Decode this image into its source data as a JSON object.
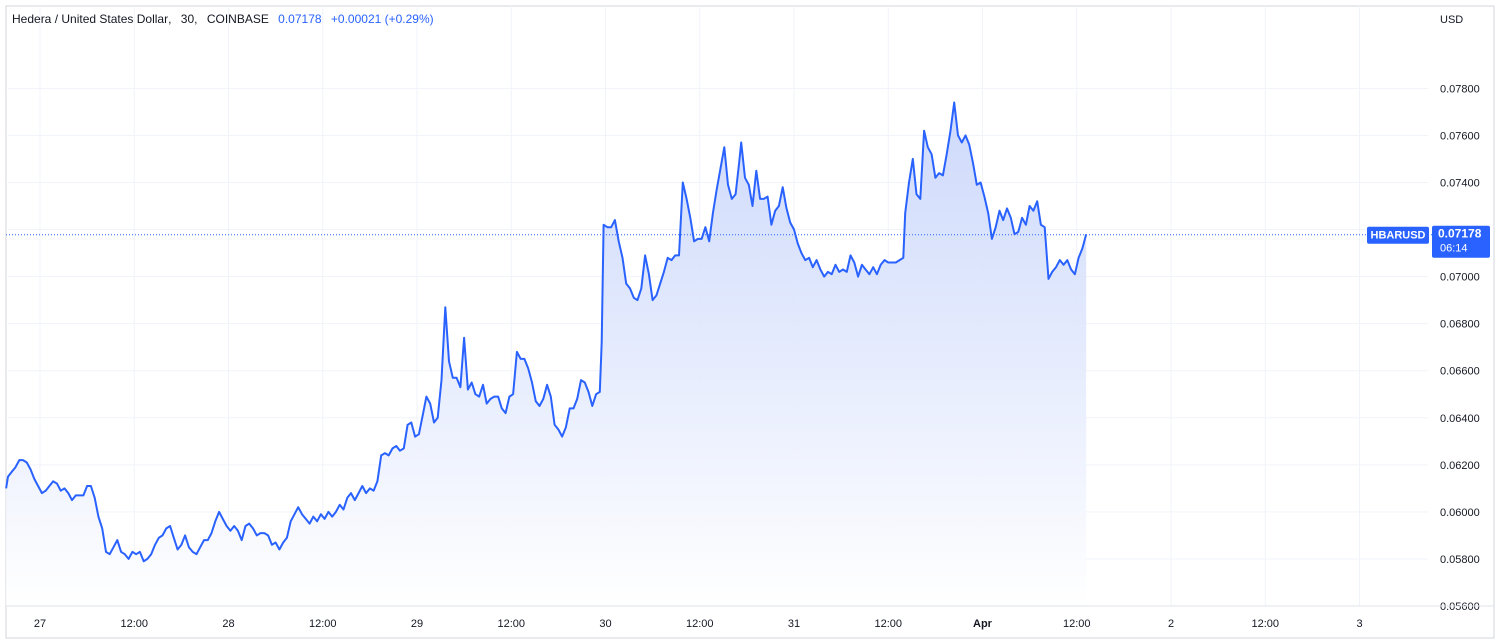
{
  "header": {
    "symbol_name": "Hedera / United States Dollar",
    "interval": "30",
    "exchange": "COINBASE",
    "last": "0.07178",
    "change": "+0.00021 (+0.29%)"
  },
  "currency_label": "USD",
  "ticker_tag": "HBARUSD",
  "price_tag": "0.07178",
  "countdown": "06:14",
  "colors": {
    "line": "#2962ff",
    "area_top": "#c9d6fb",
    "area_bottom": "#ffffff",
    "grid": "#f0f3fa",
    "text": "#131722",
    "tag_bg": "#2962ff"
  },
  "chart_data": {
    "type": "area",
    "title": "Hedera / United States Dollar, 30, COINBASE",
    "ylabel": "USD",
    "ylim": [
      0.056,
      0.08
    ],
    "y_ticks": [
      "0.05600",
      "0.05800",
      "0.06000",
      "0.06200",
      "0.06400",
      "0.06600",
      "0.06800",
      "0.07000",
      "0.07200",
      "0.07400",
      "0.07600",
      "0.07800"
    ],
    "x_ticks": [
      {
        "label": "27",
        "t": 1
      },
      {
        "label": "12:00",
        "t": 1.5
      },
      {
        "label": "28",
        "t": 2
      },
      {
        "label": "12:00",
        "t": 2.5
      },
      {
        "label": "29",
        "t": 3
      },
      {
        "label": "12:00",
        "t": 3.5
      },
      {
        "label": "30",
        "t": 4
      },
      {
        "label": "12:00",
        "t": 4.5
      },
      {
        "label": "31",
        "t": 5
      },
      {
        "label": "12:00",
        "t": 5.5
      },
      {
        "label": "Apr",
        "t": 6
      },
      {
        "label": "12:00",
        "t": 6.5
      },
      {
        "label": "2",
        "t": 7
      },
      {
        "label": "12:00",
        "t": 7.5
      },
      {
        "label": "3",
        "t": 8
      }
    ],
    "x_unit": "days (tick labels)",
    "xlim": [
      0.82,
      8.35
    ],
    "last_price": 0.07178,
    "series": [
      {
        "name": "HBARUSD",
        "points": [
          [
            0.82,
            0.061
          ],
          [
            0.83,
            0.0615
          ],
          [
            0.85,
            0.0617
          ],
          [
            0.87,
            0.0619
          ],
          [
            0.89,
            0.0622
          ],
          [
            0.91,
            0.0622
          ],
          [
            0.93,
            0.0621
          ],
          [
            0.95,
            0.0618
          ],
          [
            0.97,
            0.0614
          ],
          [
            0.99,
            0.0611
          ],
          [
            1.01,
            0.0608
          ],
          [
            1.03,
            0.0609
          ],
          [
            1.05,
            0.0611
          ],
          [
            1.07,
            0.0613
          ],
          [
            1.09,
            0.0612
          ],
          [
            1.11,
            0.0609
          ],
          [
            1.13,
            0.061
          ],
          [
            1.15,
            0.0608
          ],
          [
            1.17,
            0.0605
          ],
          [
            1.19,
            0.0607
          ],
          [
            1.21,
            0.0607
          ],
          [
            1.23,
            0.0607
          ],
          [
            1.25,
            0.0611
          ],
          [
            1.27,
            0.0611
          ],
          [
            1.29,
            0.0606
          ],
          [
            1.31,
            0.0598
          ],
          [
            1.33,
            0.0593
          ],
          [
            1.35,
            0.0583
          ],
          [
            1.37,
            0.0582
          ],
          [
            1.39,
            0.0585
          ],
          [
            1.41,
            0.0588
          ],
          [
            1.43,
            0.0583
          ],
          [
            1.45,
            0.0582
          ],
          [
            1.47,
            0.058
          ],
          [
            1.49,
            0.0583
          ],
          [
            1.51,
            0.0582
          ],
          [
            1.53,
            0.0583
          ],
          [
            1.55,
            0.0579
          ],
          [
            1.57,
            0.058
          ],
          [
            1.59,
            0.0582
          ],
          [
            1.61,
            0.0586
          ],
          [
            1.63,
            0.0589
          ],
          [
            1.65,
            0.059
          ],
          [
            1.67,
            0.0593
          ],
          [
            1.69,
            0.0594
          ],
          [
            1.71,
            0.0589
          ],
          [
            1.73,
            0.0584
          ],
          [
            1.75,
            0.0586
          ],
          [
            1.77,
            0.059
          ],
          [
            1.79,
            0.0585
          ],
          [
            1.81,
            0.0583
          ],
          [
            1.83,
            0.0582
          ],
          [
            1.85,
            0.0585
          ],
          [
            1.87,
            0.0588
          ],
          [
            1.89,
            0.0588
          ],
          [
            1.91,
            0.0591
          ],
          [
            1.93,
            0.0596
          ],
          [
            1.95,
            0.06
          ],
          [
            1.97,
            0.0597
          ],
          [
            1.99,
            0.0594
          ],
          [
            2.01,
            0.0592
          ],
          [
            2.03,
            0.0594
          ],
          [
            2.05,
            0.0592
          ],
          [
            2.07,
            0.0588
          ],
          [
            2.09,
            0.0594
          ],
          [
            2.11,
            0.0595
          ],
          [
            2.13,
            0.0593
          ],
          [
            2.15,
            0.059
          ],
          [
            2.17,
            0.0591
          ],
          [
            2.19,
            0.0591
          ],
          [
            2.21,
            0.059
          ],
          [
            2.23,
            0.0586
          ],
          [
            2.25,
            0.0587
          ],
          [
            2.27,
            0.0584
          ],
          [
            2.29,
            0.0587
          ],
          [
            2.31,
            0.0589
          ],
          [
            2.33,
            0.0596
          ],
          [
            2.35,
            0.0599
          ],
          [
            2.37,
            0.0602
          ],
          [
            2.39,
            0.0599
          ],
          [
            2.41,
            0.0597
          ],
          [
            2.43,
            0.0595
          ],
          [
            2.45,
            0.0598
          ],
          [
            2.47,
            0.0596
          ],
          [
            2.49,
            0.0599
          ],
          [
            2.51,
            0.0597
          ],
          [
            2.53,
            0.06
          ],
          [
            2.55,
            0.0598
          ],
          [
            2.57,
            0.06
          ],
          [
            2.59,
            0.0603
          ],
          [
            2.61,
            0.0601
          ],
          [
            2.63,
            0.0606
          ],
          [
            2.65,
            0.0608
          ],
          [
            2.67,
            0.0605
          ],
          [
            2.69,
            0.0608
          ],
          [
            2.71,
            0.0611
          ],
          [
            2.73,
            0.0608
          ],
          [
            2.75,
            0.061
          ],
          [
            2.77,
            0.0609
          ],
          [
            2.79,
            0.0613
          ],
          [
            2.81,
            0.0624
          ],
          [
            2.83,
            0.0625
          ],
          [
            2.85,
            0.0624
          ],
          [
            2.87,
            0.0627
          ],
          [
            2.89,
            0.0628
          ],
          [
            2.91,
            0.0626
          ],
          [
            2.93,
            0.0627
          ],
          [
            2.95,
            0.0637
          ],
          [
            2.97,
            0.0638
          ],
          [
            2.99,
            0.0632
          ],
          [
            3.01,
            0.0633
          ],
          [
            3.03,
            0.0641
          ],
          [
            3.05,
            0.0649
          ],
          [
            3.07,
            0.0646
          ],
          [
            3.09,
            0.0638
          ],
          [
            3.11,
            0.064
          ],
          [
            3.13,
            0.0656
          ],
          [
            3.15,
            0.0687
          ],
          [
            3.17,
            0.0664
          ],
          [
            3.19,
            0.0657
          ],
          [
            3.21,
            0.0657
          ],
          [
            3.23,
            0.0653
          ],
          [
            3.25,
            0.0674
          ],
          [
            3.27,
            0.0652
          ],
          [
            3.29,
            0.0655
          ],
          [
            3.31,
            0.065
          ],
          [
            3.33,
            0.0649
          ],
          [
            3.35,
            0.0654
          ],
          [
            3.37,
            0.0646
          ],
          [
            3.39,
            0.0648
          ],
          [
            3.41,
            0.0649
          ],
          [
            3.43,
            0.0649
          ],
          [
            3.45,
            0.0644
          ],
          [
            3.47,
            0.0642
          ],
          [
            3.49,
            0.0649
          ],
          [
            3.51,
            0.065
          ],
          [
            3.53,
            0.0668
          ],
          [
            3.55,
            0.0665
          ],
          [
            3.57,
            0.0665
          ],
          [
            3.59,
            0.0661
          ],
          [
            3.61,
            0.0655
          ],
          [
            3.63,
            0.0647
          ],
          [
            3.65,
            0.0645
          ],
          [
            3.67,
            0.0648
          ],
          [
            3.69,
            0.0654
          ],
          [
            3.71,
            0.0649
          ],
          [
            3.73,
            0.0637
          ],
          [
            3.75,
            0.0635
          ],
          [
            3.77,
            0.0632
          ],
          [
            3.79,
            0.0636
          ],
          [
            3.81,
            0.0644
          ],
          [
            3.83,
            0.0644
          ],
          [
            3.85,
            0.0648
          ],
          [
            3.87,
            0.0656
          ],
          [
            3.89,
            0.0655
          ],
          [
            3.91,
            0.0651
          ],
          [
            3.93,
            0.0645
          ],
          [
            3.95,
            0.065
          ],
          [
            3.97,
            0.0651
          ],
          [
            3.98,
            0.0672
          ],
          [
            3.99,
            0.0722
          ],
          [
            4.01,
            0.0721
          ],
          [
            4.03,
            0.0721
          ],
          [
            4.05,
            0.0724
          ],
          [
            4.07,
            0.0715
          ],
          [
            4.09,
            0.0708
          ],
          [
            4.11,
            0.0697
          ],
          [
            4.13,
            0.0695
          ],
          [
            4.15,
            0.0691
          ],
          [
            4.17,
            0.069
          ],
          [
            4.19,
            0.0695
          ],
          [
            4.21,
            0.0709
          ],
          [
            4.23,
            0.0701
          ],
          [
            4.25,
            0.069
          ],
          [
            4.27,
            0.0692
          ],
          [
            4.29,
            0.0697
          ],
          [
            4.31,
            0.0702
          ],
          [
            4.33,
            0.0708
          ],
          [
            4.35,
            0.0707
          ],
          [
            4.37,
            0.0709
          ],
          [
            4.39,
            0.0709
          ],
          [
            4.41,
            0.074
          ],
          [
            4.43,
            0.0733
          ],
          [
            4.45,
            0.0725
          ],
          [
            4.47,
            0.0715
          ],
          [
            4.49,
            0.0716
          ],
          [
            4.51,
            0.0716
          ],
          [
            4.53,
            0.0721
          ],
          [
            4.55,
            0.0715
          ],
          [
            4.57,
            0.0727
          ],
          [
            4.59,
            0.0737
          ],
          [
            4.61,
            0.0746
          ],
          [
            4.63,
            0.0755
          ],
          [
            4.65,
            0.0739
          ],
          [
            4.67,
            0.0733
          ],
          [
            4.69,
            0.0735
          ],
          [
            4.71,
            0.0749
          ],
          [
            4.72,
            0.0757
          ],
          [
            4.74,
            0.0742
          ],
          [
            4.76,
            0.0739
          ],
          [
            4.78,
            0.073
          ],
          [
            4.8,
            0.0745
          ],
          [
            4.82,
            0.0733
          ],
          [
            4.84,
            0.0733
          ],
          [
            4.86,
            0.0734
          ],
          [
            4.88,
            0.0722
          ],
          [
            4.9,
            0.0728
          ],
          [
            4.92,
            0.073
          ],
          [
            4.94,
            0.0738
          ],
          [
            4.96,
            0.0729
          ],
          [
            4.98,
            0.0723
          ],
          [
            5.0,
            0.072
          ],
          [
            5.02,
            0.0714
          ],
          [
            5.04,
            0.071
          ],
          [
            5.06,
            0.0707
          ],
          [
            5.08,
            0.0708
          ],
          [
            5.1,
            0.0704
          ],
          [
            5.12,
            0.0707
          ],
          [
            5.14,
            0.0703
          ],
          [
            5.16,
            0.07
          ],
          [
            5.18,
            0.0702
          ],
          [
            5.2,
            0.0701
          ],
          [
            5.22,
            0.0705
          ],
          [
            5.24,
            0.0702
          ],
          [
            5.26,
            0.0703
          ],
          [
            5.28,
            0.0702
          ],
          [
            5.3,
            0.0709
          ],
          [
            5.32,
            0.0706
          ],
          [
            5.34,
            0.07
          ],
          [
            5.36,
            0.0705
          ],
          [
            5.38,
            0.0703
          ],
          [
            5.4,
            0.0701
          ],
          [
            5.42,
            0.0704
          ],
          [
            5.44,
            0.0701
          ],
          [
            5.46,
            0.0705
          ],
          [
            5.48,
            0.0707
          ],
          [
            5.5,
            0.0706
          ],
          [
            5.52,
            0.0706
          ],
          [
            5.54,
            0.0706
          ],
          [
            5.56,
            0.0707
          ],
          [
            5.58,
            0.0708
          ],
          [
            5.59,
            0.0727
          ],
          [
            5.61,
            0.074
          ],
          [
            5.63,
            0.075
          ],
          [
            5.65,
            0.0735
          ],
          [
            5.67,
            0.0733
          ],
          [
            5.69,
            0.0762
          ],
          [
            5.71,
            0.0755
          ],
          [
            5.73,
            0.0752
          ],
          [
            5.75,
            0.0742
          ],
          [
            5.77,
            0.0744
          ],
          [
            5.79,
            0.0743
          ],
          [
            5.81,
            0.0752
          ],
          [
            5.83,
            0.0762
          ],
          [
            5.85,
            0.0774
          ],
          [
            5.87,
            0.076
          ],
          [
            5.89,
            0.0757
          ],
          [
            5.91,
            0.076
          ],
          [
            5.93,
            0.0756
          ],
          [
            5.95,
            0.0748
          ],
          [
            5.97,
            0.0739
          ],
          [
            5.99,
            0.074
          ],
          [
            6.01,
            0.0734
          ],
          [
            6.03,
            0.0727
          ],
          [
            6.05,
            0.0716
          ],
          [
            6.07,
            0.0721
          ],
          [
            6.09,
            0.0728
          ],
          [
            6.11,
            0.0724
          ],
          [
            6.13,
            0.0729
          ],
          [
            6.15,
            0.0725
          ],
          [
            6.17,
            0.0718
          ],
          [
            6.19,
            0.0719
          ],
          [
            6.21,
            0.0725
          ],
          [
            6.23,
            0.0722
          ],
          [
            6.25,
            0.073
          ],
          [
            6.27,
            0.0728
          ],
          [
            6.29,
            0.0732
          ],
          [
            6.31,
            0.0722
          ],
          [
            6.33,
            0.0721
          ],
          [
            6.35,
            0.0699
          ],
          [
            6.37,
            0.0702
          ],
          [
            6.39,
            0.0704
          ],
          [
            6.41,
            0.0707
          ],
          [
            6.43,
            0.0705
          ],
          [
            6.45,
            0.0707
          ],
          [
            6.47,
            0.0703
          ],
          [
            6.49,
            0.0701
          ],
          [
            6.51,
            0.0708
          ],
          [
            6.53,
            0.0712
          ],
          [
            6.55,
            0.0718
          ]
        ]
      }
    ]
  }
}
